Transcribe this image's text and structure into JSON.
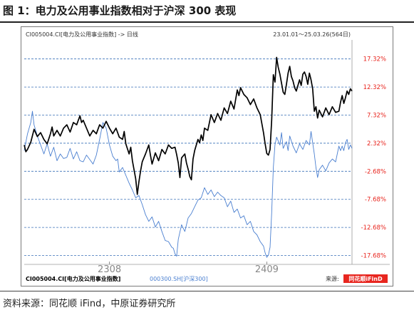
{
  "figure": {
    "title": "图 1：电力及公用事业指数相对于沪深 300 表现",
    "source": "资料来源：同花顺 iFind，中原证券研究所"
  },
  "colors": {
    "main": "#000000",
    "compare": "#4a7fd0",
    "ylabel": "#e8261f",
    "grid": "#3a70b8",
    "logo": "#e8261f"
  },
  "chart_data": {
    "type": "line",
    "header_left": "CI005004.CI[电力及公用事业指数] -> 日线",
    "header_right": "23.01.01～25.03.26(564日)",
    "legend": [
      {
        "label": "CI005004.CI[电力及公用事业指数]",
        "color": "#000000"
      },
      {
        "label": "000300.SH[沪深300]",
        "color": "#4a7fd0"
      }
    ],
    "source_label": "来源:",
    "logo_text": "同花顺iFinD",
    "x_tick_labels": [
      {
        "label": "2308",
        "x": 0.26
      },
      {
        "label": "2409",
        "x": 0.74
      }
    ],
    "yticks": [
      17.32,
      12.32,
      7.32,
      2.32,
      -2.68,
      -7.68,
      -12.68,
      -17.68
    ],
    "ytick_labels": [
      "17.32%",
      "12.32%",
      "7.32%",
      "2.32%",
      "-2.68%",
      "-7.68%",
      "-12.68%",
      "-17.68%"
    ],
    "ylim": [
      -18.5,
      20.2
    ],
    "xlim": [
      0,
      1
    ],
    "grid": true,
    "series": [
      {
        "name": "CI005004.CI[电力及公用事业指数]",
        "color": "#000000",
        "points": [
          [
            0.0,
            2.0
          ],
          [
            0.005,
            0.8
          ],
          [
            0.01,
            1.2
          ],
          [
            0.02,
            2.5
          ],
          [
            0.03,
            4.8
          ],
          [
            0.04,
            3.5
          ],
          [
            0.05,
            4.2
          ],
          [
            0.06,
            3.0
          ],
          [
            0.07,
            2.2
          ],
          [
            0.08,
            4.0
          ],
          [
            0.085,
            5.2
          ],
          [
            0.09,
            3.6
          ],
          [
            0.1,
            4.6
          ],
          [
            0.11,
            3.6
          ],
          [
            0.12,
            5.0
          ],
          [
            0.13,
            5.6
          ],
          [
            0.14,
            4.3
          ],
          [
            0.15,
            6.0
          ],
          [
            0.16,
            5.6
          ],
          [
            0.17,
            7.2
          ],
          [
            0.175,
            6.0
          ],
          [
            0.18,
            6.4
          ],
          [
            0.19,
            5.0
          ],
          [
            0.2,
            3.6
          ],
          [
            0.21,
            4.6
          ],
          [
            0.22,
            4.0
          ],
          [
            0.23,
            5.6
          ],
          [
            0.24,
            5.0
          ],
          [
            0.25,
            6.2
          ],
          [
            0.26,
            5.0
          ],
          [
            0.27,
            4.0
          ],
          [
            0.28,
            5.0
          ],
          [
            0.29,
            3.4
          ],
          [
            0.3,
            3.0
          ],
          [
            0.305,
            4.4
          ],
          [
            0.31,
            2.2
          ],
          [
            0.32,
            0.4
          ],
          [
            0.325,
            1.6
          ],
          [
            0.33,
            -0.8
          ],
          [
            0.335,
            -2.4
          ],
          [
            0.34,
            -4.0
          ],
          [
            0.345,
            -6.8
          ],
          [
            0.35,
            -4.5
          ],
          [
            0.355,
            -2.6
          ],
          [
            0.36,
            -1.0
          ],
          [
            0.37,
            0.4
          ],
          [
            0.38,
            2.0
          ],
          [
            0.385,
            0.2
          ],
          [
            0.39,
            -1.4
          ],
          [
            0.4,
            0.6
          ],
          [
            0.41,
            -0.8
          ],
          [
            0.42,
            1.2
          ],
          [
            0.43,
            0.4
          ],
          [
            0.44,
            2.0
          ],
          [
            0.45,
            1.4
          ],
          [
            0.46,
            1.6
          ],
          [
            0.465,
            0.3
          ],
          [
            0.47,
            -1.2
          ],
          [
            0.475,
            -3.8
          ],
          [
            0.48,
            -0.3
          ],
          [
            0.49,
            0.4
          ],
          [
            0.495,
            -1.2
          ],
          [
            0.5,
            -2.3
          ],
          [
            0.505,
            -3.6
          ],
          [
            0.51,
            -4.2
          ],
          [
            0.515,
            -0.5
          ],
          [
            0.52,
            1.0
          ],
          [
            0.53,
            3.0
          ],
          [
            0.535,
            2.4
          ],
          [
            0.54,
            3.8
          ],
          [
            0.545,
            2.8
          ],
          [
            0.55,
            5.0
          ],
          [
            0.56,
            4.6
          ],
          [
            0.57,
            7.4
          ],
          [
            0.58,
            6.0
          ],
          [
            0.59,
            7.6
          ],
          [
            0.6,
            6.4
          ],
          [
            0.61,
            8.6
          ],
          [
            0.62,
            7.6
          ],
          [
            0.63,
            9.8
          ],
          [
            0.64,
            8.4
          ],
          [
            0.65,
            11.8
          ],
          [
            0.655,
            10.8
          ],
          [
            0.66,
            12.2
          ],
          [
            0.67,
            11.0
          ],
          [
            0.68,
            10.4
          ],
          [
            0.69,
            9.2
          ],
          [
            0.7,
            10.2
          ],
          [
            0.71,
            8.6
          ],
          [
            0.72,
            7.4
          ],
          [
            0.725,
            5.8
          ],
          [
            0.73,
            4.2
          ],
          [
            0.735,
            2.2
          ],
          [
            0.74,
            0.5
          ],
          [
            0.745,
            0.2
          ],
          [
            0.75,
            1.2
          ],
          [
            0.755,
            6.5
          ],
          [
            0.76,
            14.5
          ],
          [
            0.765,
            13.2
          ],
          [
            0.77,
            17.6
          ],
          [
            0.775,
            15.8
          ],
          [
            0.78,
            14.6
          ],
          [
            0.785,
            13.0
          ],
          [
            0.79,
            11.4
          ],
          [
            0.795,
            11.0
          ],
          [
            0.8,
            12.8
          ],
          [
            0.805,
            14.8
          ],
          [
            0.81,
            16.0
          ],
          [
            0.815,
            14.2
          ],
          [
            0.82,
            13.4
          ],
          [
            0.825,
            12.2
          ],
          [
            0.83,
            11.6
          ],
          [
            0.835,
            12.6
          ],
          [
            0.84,
            13.6
          ],
          [
            0.845,
            12.6
          ],
          [
            0.85,
            14.6
          ],
          [
            0.855,
            15.0
          ],
          [
            0.86,
            14.2
          ],
          [
            0.865,
            12.8
          ],
          [
            0.87,
            14.8
          ],
          [
            0.875,
            13.6
          ],
          [
            0.88,
            12.0
          ],
          [
            0.885,
            8.0
          ],
          [
            0.89,
            8.8
          ],
          [
            0.895,
            6.8
          ],
          [
            0.9,
            8.2
          ],
          [
            0.91,
            7.0
          ],
          [
            0.92,
            8.6
          ],
          [
            0.93,
            7.4
          ],
          [
            0.94,
            8.8
          ],
          [
            0.95,
            7.8
          ],
          [
            0.96,
            8.0
          ],
          [
            0.965,
            9.6
          ],
          [
            0.97,
            10.8
          ],
          [
            0.975,
            9.4
          ],
          [
            0.98,
            10.4
          ],
          [
            0.985,
            11.6
          ],
          [
            0.99,
            11.0
          ],
          [
            0.995,
            12.0
          ],
          [
            1.0,
            11.6
          ]
        ]
      },
      {
        "name": "000300.SH[沪深300]",
        "color": "#4a7fd0",
        "points": [
          [
            0.0,
            1.0
          ],
          [
            0.01,
            4.0
          ],
          [
            0.02,
            6.0
          ],
          [
            0.025,
            8.0
          ],
          [
            0.03,
            5.6
          ],
          [
            0.04,
            3.6
          ],
          [
            0.05,
            2.0
          ],
          [
            0.06,
            0.4
          ],
          [
            0.07,
            2.2
          ],
          [
            0.08,
            0.0
          ],
          [
            0.09,
            1.6
          ],
          [
            0.1,
            -0.8
          ],
          [
            0.11,
            0.4
          ],
          [
            0.12,
            -0.4
          ],
          [
            0.13,
            -0.2
          ],
          [
            0.14,
            1.4
          ],
          [
            0.15,
            -0.5
          ],
          [
            0.16,
            0.8
          ],
          [
            0.17,
            -0.8
          ],
          [
            0.18,
            -1.0
          ],
          [
            0.19,
            0.2
          ],
          [
            0.2,
            -0.6
          ],
          [
            0.21,
            -1.4
          ],
          [
            0.22,
            0.2
          ],
          [
            0.23,
            3.0
          ],
          [
            0.24,
            6.0
          ],
          [
            0.25,
            5.0
          ],
          [
            0.26,
            2.0
          ],
          [
            0.27,
            0.0
          ],
          [
            0.28,
            -0.8
          ],
          [
            0.285,
            -0.5
          ],
          [
            0.29,
            -2.8
          ],
          [
            0.3,
            -2.0
          ],
          [
            0.31,
            -3.4
          ],
          [
            0.32,
            -4.8
          ],
          [
            0.33,
            -6.0
          ],
          [
            0.34,
            -7.4
          ],
          [
            0.35,
            -7.0
          ],
          [
            0.36,
            -8.6
          ],
          [
            0.37,
            -10.4
          ],
          [
            0.38,
            -11.6
          ],
          [
            0.39,
            -10.8
          ],
          [
            0.4,
            -12.6
          ],
          [
            0.41,
            -11.6
          ],
          [
            0.42,
            -13.4
          ],
          [
            0.43,
            -15.0
          ],
          [
            0.44,
            -15.2
          ],
          [
            0.45,
            -16.2
          ],
          [
            0.455,
            -16.4
          ],
          [
            0.46,
            -17.4
          ],
          [
            0.465,
            -17.8
          ],
          [
            0.47,
            -14.8
          ],
          [
            0.48,
            -12.2
          ],
          [
            0.49,
            -13.4
          ],
          [
            0.5,
            -11.0
          ],
          [
            0.51,
            -10.2
          ],
          [
            0.52,
            -9.0
          ],
          [
            0.53,
            -7.8
          ],
          [
            0.54,
            -7.4
          ],
          [
            0.55,
            -5.6
          ],
          [
            0.56,
            -6.8
          ],
          [
            0.57,
            -6.0
          ],
          [
            0.58,
            -7.2
          ],
          [
            0.59,
            -6.4
          ],
          [
            0.6,
            -7.0
          ],
          [
            0.61,
            -7.4
          ],
          [
            0.62,
            -9.0
          ],
          [
            0.63,
            -8.0
          ],
          [
            0.64,
            -10.0
          ],
          [
            0.65,
            -9.4
          ],
          [
            0.66,
            -11.0
          ],
          [
            0.67,
            -10.6
          ],
          [
            0.68,
            -12.2
          ],
          [
            0.69,
            -11.6
          ],
          [
            0.7,
            -13.4
          ],
          [
            0.71,
            -14.0
          ],
          [
            0.72,
            -15.2
          ],
          [
            0.73,
            -16.0
          ],
          [
            0.735,
            -17.2
          ],
          [
            0.74,
            -18.0
          ],
          [
            0.745,
            -17.6
          ],
          [
            0.75,
            -16.2
          ],
          [
            0.755,
            -10.0
          ],
          [
            0.76,
            -2.0
          ],
          [
            0.765,
            2.0
          ],
          [
            0.77,
            3.4
          ],
          [
            0.78,
            2.0
          ],
          [
            0.785,
            4.2
          ],
          [
            0.79,
            1.4
          ],
          [
            0.8,
            2.6
          ],
          [
            0.805,
            1.0
          ],
          [
            0.81,
            3.6
          ],
          [
            0.82,
            1.8
          ],
          [
            0.83,
            0.6
          ],
          [
            0.84,
            2.2
          ],
          [
            0.85,
            1.2
          ],
          [
            0.86,
            2.8
          ],
          [
            0.87,
            2.0
          ],
          [
            0.875,
            4.4
          ],
          [
            0.88,
            2.4
          ],
          [
            0.885,
            0.4
          ],
          [
            0.89,
            -2.0
          ],
          [
            0.895,
            -3.8
          ],
          [
            0.9,
            -2.4
          ],
          [
            0.91,
            -1.6
          ],
          [
            0.92,
            -2.6
          ],
          [
            0.93,
            -1.2
          ],
          [
            0.94,
            -0.5
          ],
          [
            0.95,
            -1.0
          ],
          [
            0.96,
            1.8
          ],
          [
            0.965,
            1.0
          ],
          [
            0.97,
            1.8
          ],
          [
            0.975,
            1.0
          ],
          [
            0.98,
            2.4
          ],
          [
            0.985,
            3.0
          ],
          [
            0.99,
            1.2
          ],
          [
            0.995,
            2.0
          ],
          [
            1.0,
            1.4
          ]
        ]
      }
    ]
  }
}
